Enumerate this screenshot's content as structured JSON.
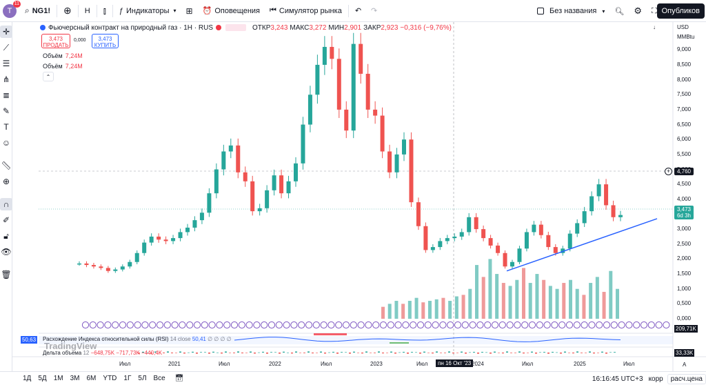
{
  "topbar": {
    "avatar_letter": "T",
    "notif_count": "11",
    "symbol": "NG1!",
    "interval": "H",
    "indicators_label": "Индикаторы",
    "alerts_label": "Оповещения",
    "replay_label": "Симулятор рынка",
    "layout_name": "Без названия",
    "publish_label": "Опубликов"
  },
  "header": {
    "title": "Фьючерсный контракт на природный газ · 1H · RUS",
    "ohlc": [
      {
        "k": "ОТКР",
        "v": "3,243"
      },
      {
        "k": "МАКС",
        "v": "3,272"
      },
      {
        "k": "МИН",
        "v": "2,901"
      },
      {
        "k": "ЗАКР",
        "v": "2,923"
      }
    ],
    "change": "−0,316 (−9,76%)",
    "sell_price": "3,473",
    "sell_label": "ПРОДАТЬ",
    "spread": "0,000",
    "buy_price": "3,473",
    "buy_label": "КУПИТЬ",
    "volume_label": "Объём",
    "volume_value": "7,24M"
  },
  "price_axis": {
    "currency": "USD",
    "unit": "MMBtu",
    "ticks": [
      "9,000",
      "8,500",
      "8,000",
      "7,500",
      "7,000",
      "6,500",
      "6,000",
      "5,500",
      "5,000",
      "4,500",
      "4,000",
      "3,500",
      "3,000",
      "2,500",
      "2,000",
      "1,500",
      "1,000",
      "0,500",
      "0,000"
    ],
    "crosshair_price": "4,760",
    "last_price": "3,473",
    "countdown": "6d 3h"
  },
  "time_axis": {
    "labels": [
      "Июл",
      "2021",
      "Июл",
      "2022",
      "Июл",
      "2023",
      "Июл",
      "2024",
      "Июл",
      "2025",
      "Июл"
    ],
    "crosshair_date": "пн 16 Окт '23"
  },
  "rsi": {
    "label": "Расхождение Индекса относительной силы (RSI)",
    "params": "14 close",
    "value": "50,41",
    "scale_value": "50,63"
  },
  "delta": {
    "label": "Дельта объема",
    "params": "12",
    "values": "−648,75K −717,73K −440,4K",
    "scale_value": "33,33K"
  },
  "volume_pane": {
    "scale_value": "209,71K"
  },
  "watermark": "TradingView",
  "bottombar": {
    "ranges": [
      "1Д",
      "5Д",
      "1М",
      "3М",
      "6М",
      "YTD",
      "1Г",
      "5Л",
      "Все"
    ],
    "clock": "16:16:45 UTC+3",
    "adj_label": "корр",
    "settle_label": "расч.цена"
  },
  "chart_data": {
    "type": "candlestick",
    "title": "Фьючерсный контракт на природный газ · 1H · RUS",
    "x_range": [
      "2020-05",
      "2025-07"
    ],
    "ylim": [
      0,
      9.5
    ],
    "candles_close": [
      1.85,
      1.8,
      1.75,
      1.7,
      1.6,
      1.65,
      1.75,
      1.9,
      2.2,
      2.55,
      2.75,
      2.65,
      2.6,
      2.7,
      2.9,
      3.05,
      3.3,
      3.55,
      4.2,
      5.0,
      5.6,
      5.8,
      4.9,
      4.6,
      3.6,
      3.7,
      4.3,
      4.8,
      4.2,
      4.6,
      5.2,
      6.5,
      7.5,
      8.5,
      9.1,
      8.7,
      7.0,
      6.3,
      9.2,
      8.2,
      7.0,
      6.8,
      5.6,
      4.9,
      5.5,
      6.0,
      3.9,
      3.1,
      2.3,
      2.4,
      2.6,
      2.7,
      2.75,
      2.9,
      3.4,
      3.0,
      2.7,
      2.45,
      2.2,
      1.75,
      1.9,
      2.35,
      2.9,
      3.15,
      2.8,
      2.4,
      2.2,
      2.35,
      2.85,
      3.2,
      3.6,
      4.1,
      4.5,
      3.8,
      3.4,
      3.473
    ],
    "volume_bars": [
      0.4,
      0.5,
      0.6,
      0.5,
      0.6,
      0.7,
      0.55,
      0.6,
      0.65,
      0.7,
      0.6,
      0.75,
      0.8,
      1.0,
      1.8,
      1.4,
      2.0,
      1.5,
      1.2,
      1.1,
      1.3,
      1.7,
      1.2,
      1.5,
      1.3,
      1.1,
      1.0,
      1.2,
      1.3,
      1.0,
      0.8,
      1.2,
      1.4,
      0.9,
      1.6,
      1.0
    ],
    "trendline": {
      "from": [
        "2024-04",
        1.6
      ],
      "to": [
        "2025-06",
        3.35
      ]
    }
  }
}
